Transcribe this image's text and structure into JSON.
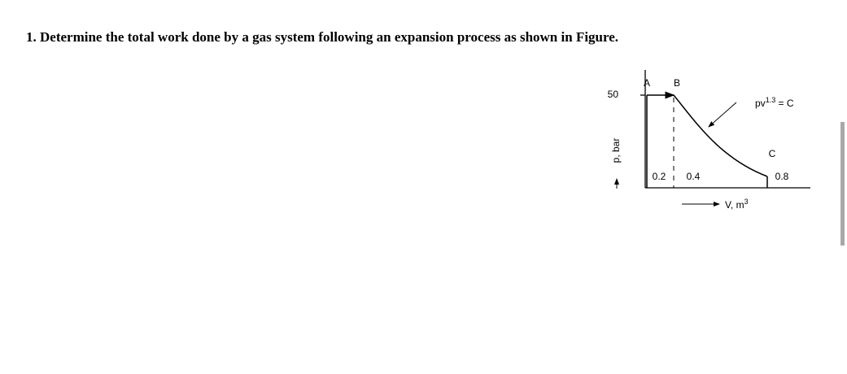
{
  "question": {
    "text": "1. Determine the total work done by a gas system following an expansion process as shown in Figure."
  },
  "figure": {
    "y_axis_label": "p, bar",
    "x_axis_label": {
      "main": "V, m",
      "sup": "3"
    },
    "y_tick": "50",
    "x_ticks": [
      "0.2",
      "0.4",
      "0.8"
    ],
    "points": [
      "A",
      "B",
      "C"
    ],
    "process_label": {
      "main": "pv",
      "sup": "1.3",
      "rest": " = C"
    }
  }
}
